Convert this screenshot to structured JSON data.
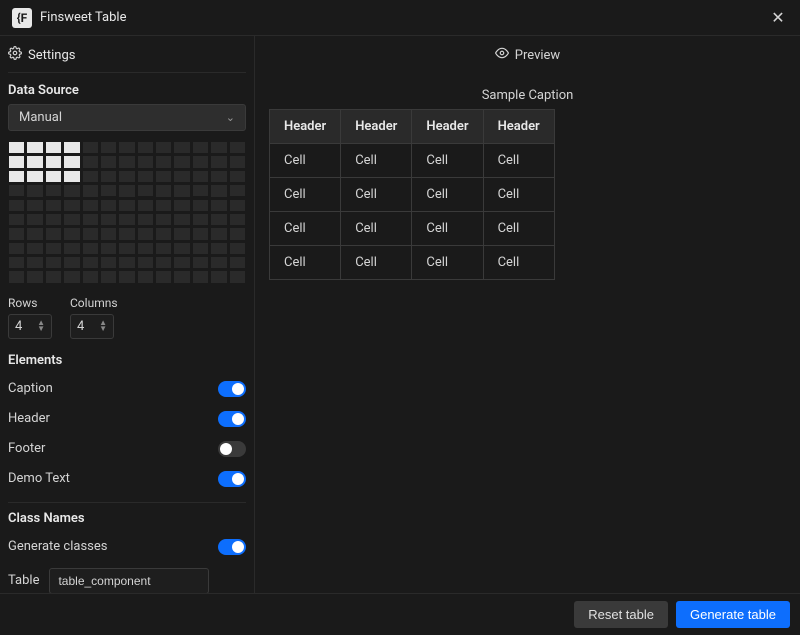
{
  "titleBar": {
    "logo": "{F",
    "title": "Finsweet Table"
  },
  "sidebar": {
    "settings_tab_label": "Settings",
    "data_source_label": "Data Source",
    "data_source_value": "Manual",
    "grid_selector": {
      "rows": 10,
      "cols": 13,
      "selected_rows": 3,
      "selected_cols": 4
    },
    "rows_label": "Rows",
    "rows_value": "4",
    "columns_label": "Columns",
    "columns_value": "4",
    "elements_label": "Elements",
    "toggles": {
      "caption": {
        "label": "Caption",
        "on": true
      },
      "header": {
        "label": "Header",
        "on": true
      },
      "footer": {
        "label": "Footer",
        "on": false
      },
      "demo_text": {
        "label": "Demo Text",
        "on": true
      }
    },
    "class_names_label": "Class Names",
    "generate_classes": {
      "label": "Generate classes",
      "on": true
    },
    "table_class_label": "Table",
    "table_class_value": "table_component"
  },
  "preview": {
    "tab_label": "Preview",
    "caption": "Sample Caption",
    "header_cell": "Header",
    "body_cell": "Cell",
    "columns": 4,
    "rows": 4
  },
  "footer": {
    "reset_label": "Reset table",
    "generate_label": "Generate table"
  }
}
